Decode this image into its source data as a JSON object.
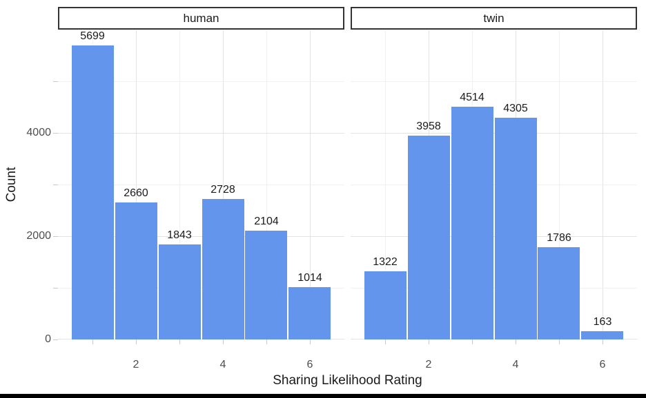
{
  "figure": {
    "background": "#FFFFFF",
    "bottom_bar_color": "#000000"
  },
  "chart_data": {
    "type": "bar",
    "subtype": "faceted-histogram",
    "xlabel": "Sharing Likelihood Rating",
    "ylabel": "Count",
    "facets": [
      {
        "label": "human",
        "categories": [
          1,
          2,
          3,
          4,
          5,
          6
        ],
        "values": [
          5699,
          2660,
          1843,
          2728,
          2104,
          1014
        ]
      },
      {
        "label": "twin",
        "categories": [
          1,
          2,
          3,
          4,
          5,
          6
        ],
        "values": [
          1322,
          3958,
          4514,
          4305,
          1786,
          163
        ]
      }
    ],
    "x_all_ticks": [
      1,
      2,
      3,
      4,
      5,
      6
    ],
    "x_labeled_ticks": [
      2,
      4,
      6
    ],
    "x_minor_grid": [
      1,
      3,
      5
    ],
    "y_labeled_ticks": [
      0,
      2000,
      4000
    ],
    "y_minor_grid": [
      1000,
      3000,
      5000
    ],
    "y_all_ticks": [
      0,
      1000,
      2000,
      3000,
      4000,
      5000
    ],
    "xlim": [
      0.2,
      6.8
    ],
    "ylim": [
      0,
      5994
    ],
    "bar_width_units": 1.0,
    "legend_position": "none",
    "grid": true,
    "colors": {
      "bar_fill": "#6495ED",
      "bar_gap": "#FFFFFF",
      "grid_major": "#E3E3E3",
      "grid_minor": "#F1F1F1",
      "tick_mark": "#C9C9C9",
      "tick_label": "#4D4D4D",
      "text": "#1A1A1A",
      "strip_border": "#333333",
      "strip_background": "#FFFFFF"
    }
  }
}
